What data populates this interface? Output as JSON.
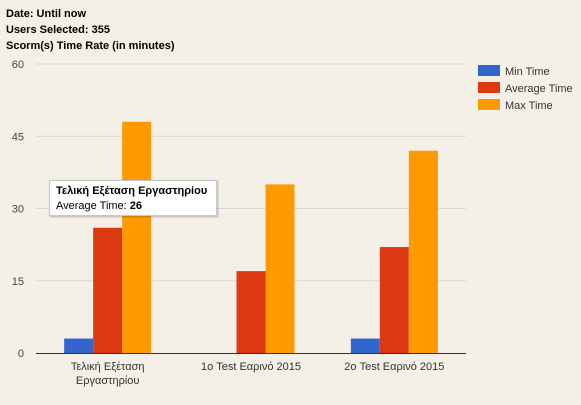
{
  "header": {
    "date_line": "Date: Until now",
    "users_line": "Users Selected: 355",
    "rate_line": "Scorm(s) Time Rate (in minutes)"
  },
  "tooltip": {
    "title": "Τελική Εξέταση Εργαστηρίου",
    "label": "Average Time:",
    "value": "26"
  },
  "chart_data": {
    "type": "bar",
    "categories": [
      [
        "Τελική Εξέταση",
        "Εργαστηρίου"
      ],
      [
        "1ο Test Εαρινό 2015"
      ],
      [
        "2ο Test Εαρινό 2015"
      ]
    ],
    "series": [
      {
        "name": "Min Time",
        "color": "#3366cc",
        "values": [
          3,
          0,
          3
        ]
      },
      {
        "name": "Average Time",
        "color": "#dc3912",
        "values": [
          26,
          17,
          22
        ]
      },
      {
        "name": "Max Time",
        "color": "#ff9900",
        "values": [
          48,
          35,
          42
        ]
      }
    ],
    "ylim": [
      0,
      60
    ],
    "yticks": [
      0,
      15,
      30,
      45,
      60
    ],
    "grid": true,
    "legend_position": "right"
  }
}
